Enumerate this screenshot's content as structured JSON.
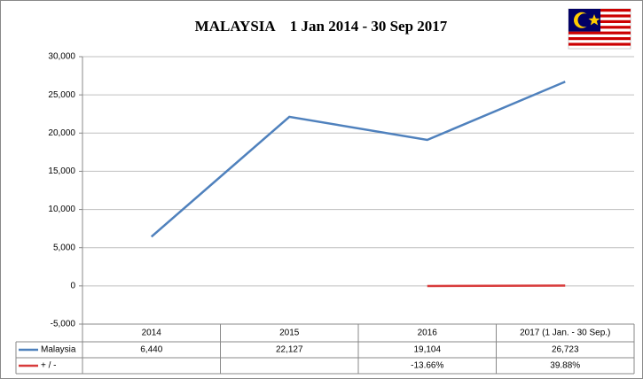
{
  "chart_data": {
    "type": "line",
    "title": "MALAYSIA    1 Jan 2014 - 30 Sep 2017",
    "categories": [
      "2014",
      "2015",
      "2016",
      "2017 (1 Jan. - 30 Sep.)"
    ],
    "series": [
      {
        "name": "Malaysia",
        "color": "#4f81bd",
        "values": [
          6440,
          22127,
          19104,
          26723
        ],
        "value_labels": [
          "6,440",
          "22,127",
          "19,104",
          "26,723"
        ]
      },
      {
        "name": "+ / -",
        "color": "#d83b3b",
        "values": [
          null,
          null,
          -13.66,
          39.88
        ],
        "value_labels": [
          null,
          null,
          "-13.66%",
          "39.88%"
        ]
      }
    ],
    "ylim": [
      -5000,
      30000
    ],
    "yticks": [
      {
        "value": -5000,
        "label": "-5,000"
      },
      0,
      {
        "value": 5000,
        "label": "5,000"
      },
      {
        "value": 10000,
        "label": "10,000"
      },
      {
        "value": 15000,
        "label": "15,000"
      },
      {
        "value": 20000,
        "label": "20,000"
      },
      {
        "value": 25000,
        "label": "25,000"
      },
      {
        "value": 30000,
        "label": "30,000"
      }
    ],
    "grid": true
  }
}
